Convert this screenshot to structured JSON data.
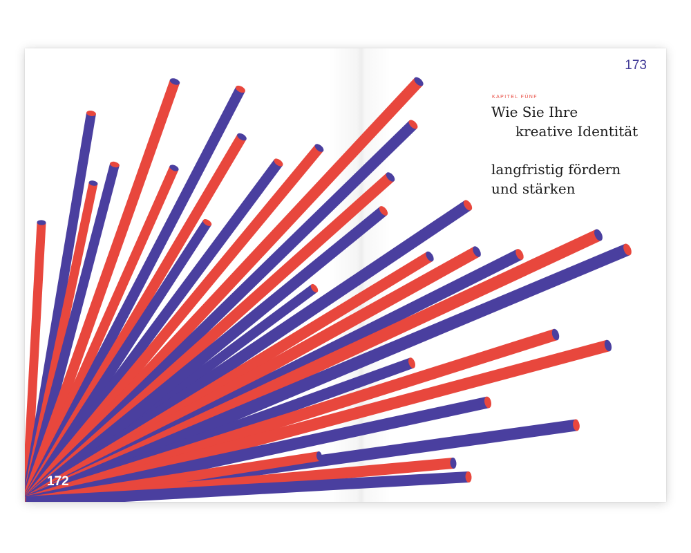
{
  "pages": {
    "left_number": "172",
    "right_number": "173"
  },
  "chapter": {
    "label": "KAPITEL FÜNF"
  },
  "headline": {
    "line1": "Wie Sie Ihre",
    "line2": "kreative Identität",
    "line3": "langfristig fördern",
    "line4": "und stärken"
  },
  "colors": {
    "red": "#e8473d",
    "purple": "#4a3f9f",
    "purple_text": "#3f3896"
  },
  "illustration": {
    "name": "radiating-cylinders",
    "stripe_colors": [
      "red",
      "purple"
    ]
  }
}
